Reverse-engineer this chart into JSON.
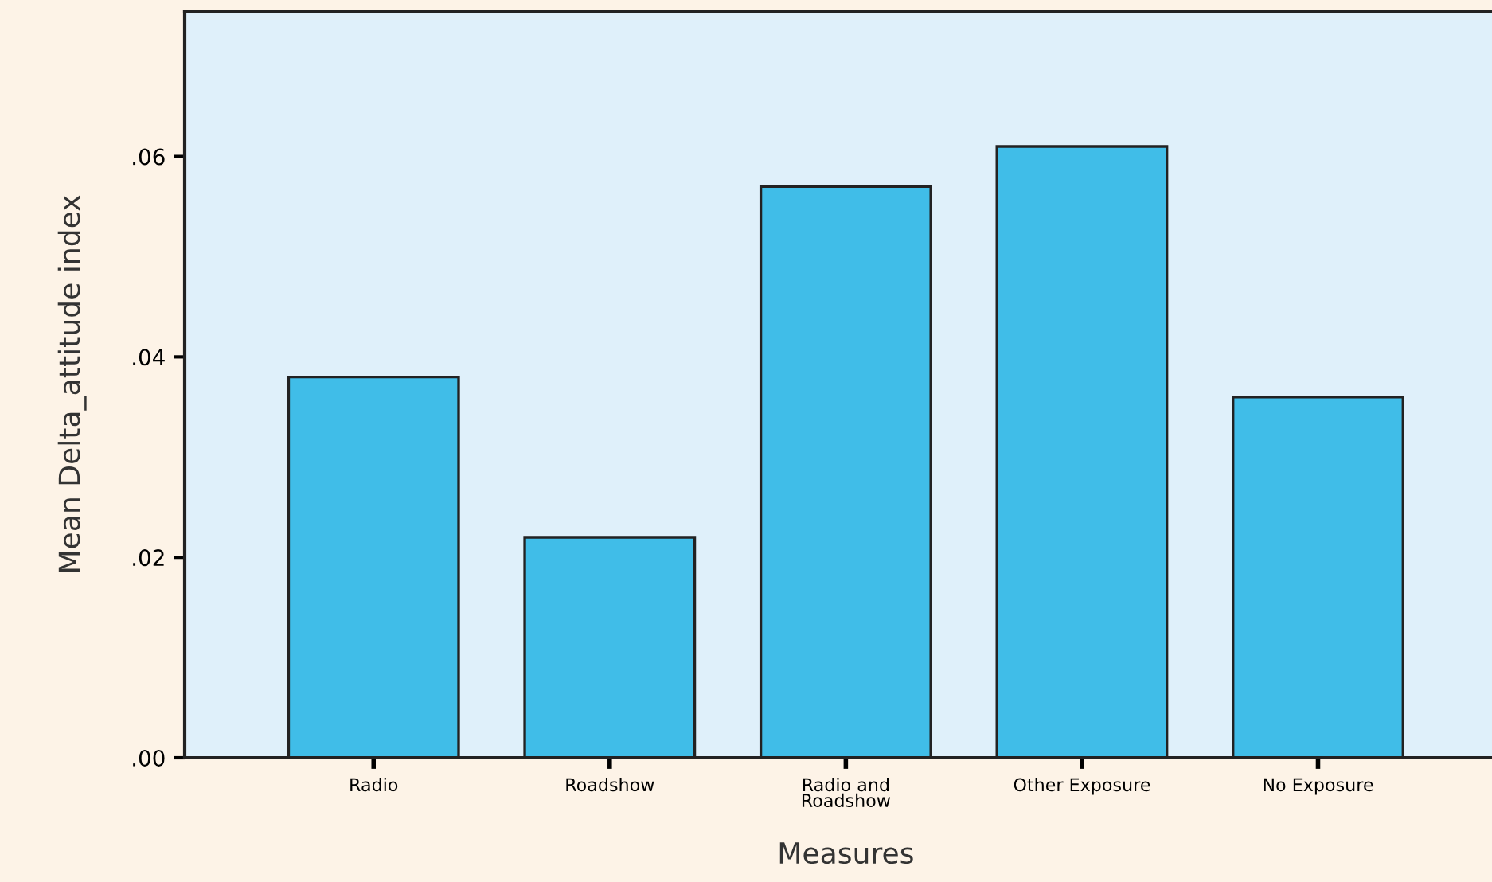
{
  "chart_data": {
    "type": "bar",
    "xlabel": "Measures",
    "ylabel": "Mean Delta_attitude index",
    "categories": [
      "Radio",
      "Roadshow",
      "Radio and\nRoadshow",
      "Other Exposure",
      "No Exposure"
    ],
    "values": [
      0.038,
      0.022,
      0.057,
      0.061,
      0.036
    ],
    "color": "#40bde8",
    "ylim": [
      0,
      0.0745
    ],
    "yticks": [
      {
        "value": 0,
        "label": ".00"
      },
      {
        "value": 0.02,
        "label": ".02"
      },
      {
        "value": 0.04,
        "label": ".04"
      },
      {
        "value": 0.06,
        "label": ".06"
      }
    ],
    "grid": false,
    "legend": false
  }
}
